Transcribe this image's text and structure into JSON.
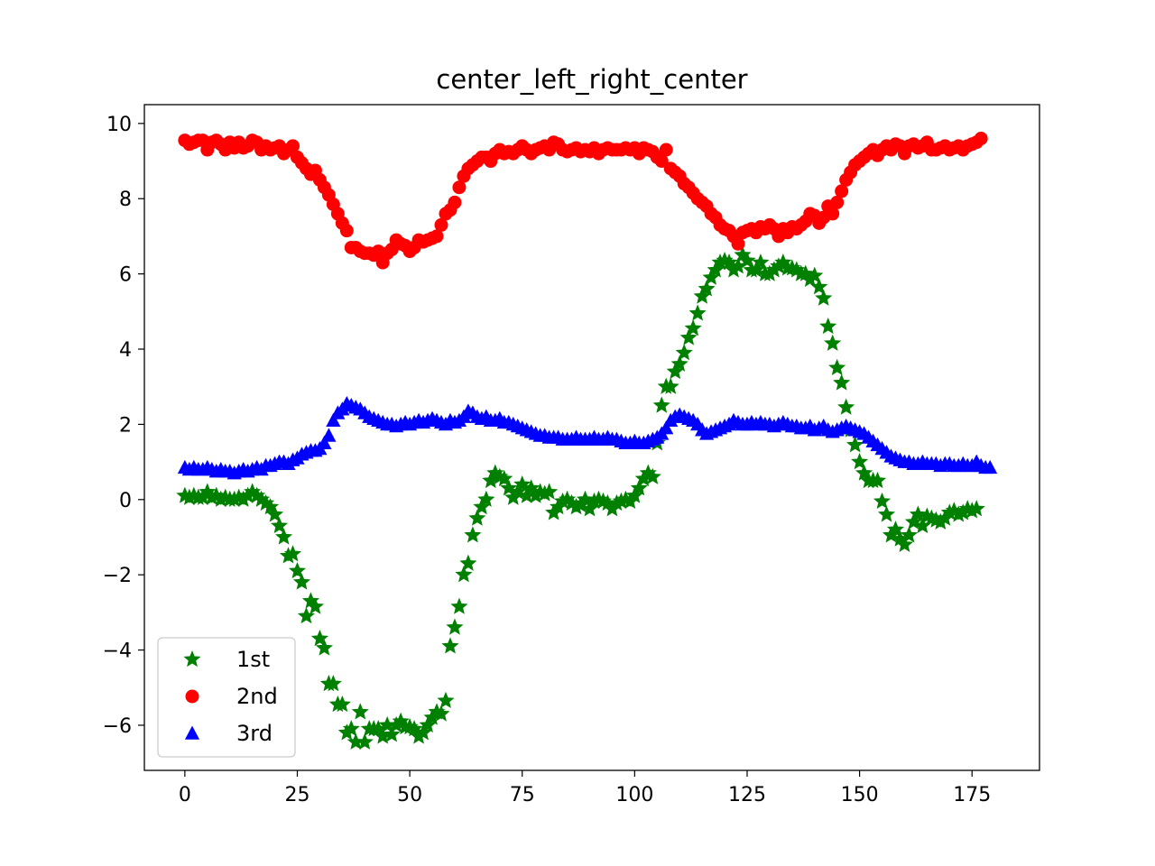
{
  "chart_data": {
    "type": "scatter",
    "title": "center_left_right_center",
    "xlabel": "",
    "ylabel": "",
    "xlim": [
      -9,
      190
    ],
    "ylim": [
      -7.2,
      10.5
    ],
    "xticks": [
      0,
      25,
      50,
      75,
      100,
      125,
      150,
      175
    ],
    "xtick_labels": [
      "0",
      "25",
      "50",
      "75",
      "100",
      "125",
      "150",
      "175"
    ],
    "yticks": [
      -6,
      -4,
      -2,
      0,
      2,
      4,
      6,
      8,
      10
    ],
    "ytick_labels": [
      "−6",
      "−4",
      "−2",
      "0",
      "2",
      "4",
      "6",
      "8",
      "10"
    ],
    "grid": false,
    "legend_position": "lower-left",
    "x_values": "0 to 179, step 1",
    "series": [
      {
        "name": "1st",
        "marker": "star",
        "color": "#008000",
        "values": [
          0.1,
          0.05,
          0.1,
          0.05,
          0.05,
          0.2,
          0.05,
          0.1,
          0.0,
          0.05,
          0.0,
          0.0,
          0.05,
          0.0,
          0.1,
          0.2,
          0.1,
          0.0,
          -0.1,
          -0.2,
          -0.4,
          -0.7,
          -1.0,
          -1.5,
          -1.45,
          -1.9,
          -2.2,
          -3.1,
          -2.7,
          -2.85,
          -3.7,
          -3.95,
          -4.9,
          -4.9,
          -5.45,
          -5.45,
          -6.2,
          -6.1,
          -6.45,
          -5.65,
          -6.45,
          -6.1,
          -6.1,
          -6.1,
          -6.3,
          -6.0,
          -6.25,
          -6.0,
          -5.9,
          -6.05,
          -6.05,
          -6.1,
          -6.3,
          -6.2,
          -6.0,
          -5.8,
          -5.65,
          -5.7,
          -5.35,
          -3.9,
          -3.4,
          -2.85,
          -2.0,
          -1.7,
          -0.95,
          -0.5,
          -0.2,
          0.0,
          0.5,
          0.7,
          0.6,
          0.55,
          0.3,
          0.05,
          0.2,
          0.4,
          0.1,
          0.3,
          0.1,
          0.2,
          0.15,
          0.2,
          -0.35,
          -0.2,
          -0.05,
          0.0,
          -0.1,
          -0.2,
          -0.15,
          0.0,
          -0.25,
          -0.05,
          0.0,
          -0.05,
          -0.1,
          -0.25,
          -0.1,
          -0.05,
          0.0,
          -0.05,
          0.1,
          0.3,
          0.55,
          0.7,
          0.6,
          1.5,
          2.5,
          3.0,
          3.0,
          3.4,
          3.6,
          3.9,
          4.3,
          4.55,
          4.95,
          5.4,
          5.6,
          5.9,
          6.1,
          6.3,
          6.35,
          6.3,
          6.1,
          6.2,
          6.5,
          6.35,
          6.1,
          6.1,
          6.3,
          6.0,
          6.0,
          6.1,
          6.2,
          6.3,
          6.15,
          6.15,
          6.1,
          6.0,
          6.0,
          5.85,
          5.95,
          5.65,
          5.35,
          4.6,
          4.15,
          3.5,
          3.1,
          2.45,
          1.85,
          1.45,
          1.0,
          0.7,
          0.5,
          0.5,
          0.5,
          -0.05,
          -0.4,
          -0.95,
          -0.8,
          -1.05,
          -1.2,
          -0.95,
          -0.6,
          -0.4,
          -0.7,
          -0.45,
          -0.5,
          -0.55,
          -0.6,
          -0.5,
          -0.35,
          -0.3,
          -0.4,
          -0.35,
          -0.25,
          -0.3,
          -0.25
        ]
      },
      {
        "name": "2nd",
        "marker": "circle",
        "color": "#ff0000",
        "values": [
          9.55,
          9.45,
          9.5,
          9.55,
          9.55,
          9.3,
          9.5,
          9.55,
          9.45,
          9.3,
          9.5,
          9.35,
          9.5,
          9.35,
          9.4,
          9.55,
          9.5,
          9.3,
          9.4,
          9.3,
          9.35,
          9.4,
          9.2,
          9.3,
          9.4,
          9.1,
          8.95,
          8.8,
          8.65,
          8.75,
          8.5,
          8.3,
          8.1,
          7.85,
          7.6,
          7.35,
          7.15,
          6.7,
          6.7,
          6.6,
          6.55,
          6.55,
          6.5,
          6.6,
          6.3,
          6.55,
          6.65,
          6.9,
          6.8,
          6.75,
          6.6,
          6.7,
          6.9,
          6.85,
          6.9,
          6.95,
          7.0,
          7.3,
          7.6,
          7.7,
          7.9,
          8.3,
          8.6,
          8.8,
          8.9,
          9.0,
          9.1,
          9.1,
          9.0,
          9.2,
          9.3,
          9.2,
          9.25,
          9.2,
          9.3,
          9.4,
          9.3,
          9.2,
          9.3,
          9.35,
          9.4,
          9.3,
          9.5,
          9.45,
          9.3,
          9.25,
          9.3,
          9.35,
          9.25,
          9.3,
          9.25,
          9.35,
          9.2,
          9.3,
          9.35,
          9.3,
          9.3,
          9.3,
          9.35,
          9.3,
          9.35,
          9.2,
          9.35,
          9.3,
          9.25,
          9.1,
          9.0,
          9.3,
          8.8,
          8.7,
          8.6,
          8.4,
          8.3,
          8.15,
          8.0,
          7.9,
          7.8,
          7.6,
          7.5,
          7.3,
          7.2,
          7.15,
          7.0,
          6.8,
          7.1,
          7.15,
          7.2,
          7.1,
          7.25,
          7.2,
          7.3,
          7.2,
          7.0,
          7.2,
          7.1,
          7.25,
          7.2,
          7.3,
          7.4,
          7.6,
          7.55,
          7.35,
          7.5,
          7.8,
          7.6,
          7.9,
          8.2,
          8.5,
          8.7,
          8.9,
          9.0,
          9.1,
          9.2,
          9.3,
          9.15,
          9.3,
          9.4,
          9.3,
          9.45,
          9.4,
          9.2,
          9.4,
          9.45,
          9.35,
          9.4,
          9.5,
          9.3,
          9.3,
          9.35,
          9.4,
          9.3,
          9.35,
          9.4,
          9.3,
          9.4,
          9.45,
          9.5,
          9.6
        ]
      },
      {
        "name": "3rd",
        "marker": "triangle",
        "color": "#0000ff",
        "values": [
          0.85,
          0.8,
          0.85,
          0.8,
          0.8,
          0.85,
          0.8,
          0.75,
          0.8,
          0.75,
          0.75,
          0.7,
          0.75,
          0.8,
          0.75,
          0.8,
          0.85,
          0.8,
          0.9,
          0.9,
          0.95,
          1.0,
          1.0,
          0.95,
          1.05,
          1.1,
          1.2,
          1.25,
          1.3,
          1.3,
          1.35,
          1.5,
          1.7,
          2.1,
          2.3,
          2.4,
          2.55,
          2.5,
          2.45,
          2.4,
          2.3,
          2.2,
          2.15,
          2.1,
          2.05,
          2.0,
          2.0,
          1.95,
          2.0,
          2.05,
          2.0,
          2.05,
          2.1,
          2.05,
          2.1,
          2.15,
          2.1,
          2.05,
          2.0,
          2.1,
          2.05,
          2.1,
          2.2,
          2.35,
          2.3,
          2.2,
          2.15,
          2.2,
          2.1,
          2.1,
          2.15,
          2.05,
          2.05,
          2.0,
          1.95,
          1.9,
          1.85,
          1.8,
          1.75,
          1.7,
          1.7,
          1.65,
          1.65,
          1.65,
          1.6,
          1.6,
          1.6,
          1.65,
          1.6,
          1.6,
          1.6,
          1.65,
          1.6,
          1.6,
          1.65,
          1.6,
          1.6,
          1.55,
          1.5,
          1.5,
          1.55,
          1.5,
          1.5,
          1.55,
          1.6,
          1.65,
          1.75,
          1.9,
          2.1,
          2.2,
          2.25,
          2.2,
          2.15,
          2.1,
          2.0,
          1.85,
          1.75,
          1.8,
          1.85,
          1.9,
          1.95,
          2.0,
          2.1,
          2.05,
          2.0,
          2.0,
          2.05,
          2.0,
          2.05,
          2.0,
          2.0,
          1.95,
          2.0,
          2.05,
          2.0,
          1.95,
          1.95,
          1.9,
          1.9,
          1.95,
          1.85,
          1.9,
          1.95,
          1.85,
          1.8,
          1.85,
          1.9,
          1.95,
          1.9,
          1.85,
          1.8,
          1.75,
          1.65,
          1.55,
          1.45,
          1.35,
          1.25,
          1.15,
          1.1,
          1.05,
          1.0,
          1.0,
          0.95,
          0.95,
          1.0,
          0.95,
          0.95,
          0.95,
          0.9,
          0.95,
          0.95,
          0.9,
          0.9,
          0.95,
          0.9,
          0.9,
          1.0,
          0.9,
          0.85,
          0.85
        ]
      }
    ]
  }
}
